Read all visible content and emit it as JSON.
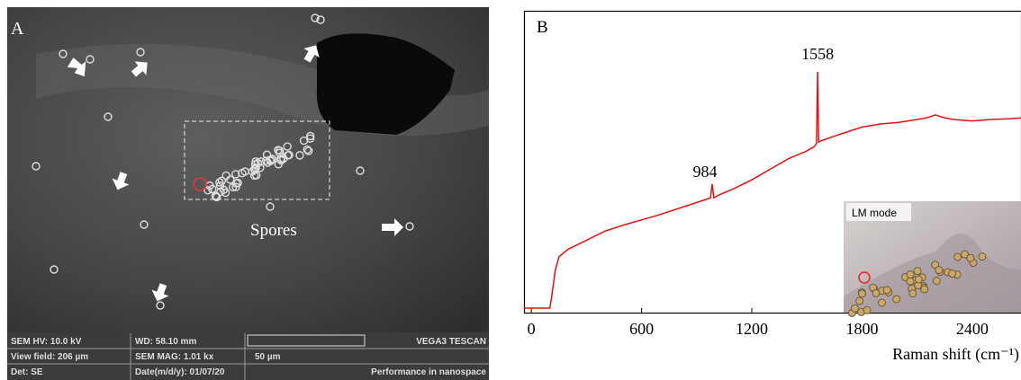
{
  "image_a": {
    "panel_label": "A",
    "spores_label": "Spores",
    "info_bar": [
      [
        "SEM HV: 10.0 kV",
        "WD: 58.10 mm",
        "VEGA3 TESCAN"
      ],
      [
        "View field: 206 µm",
        "SEM MAG: 1.01 kx",
        "50 µm"
      ],
      [
        "Det: SE",
        "Date(m/d/y): 01/07/20",
        "Performance in nanospace"
      ]
    ]
  },
  "inset": {
    "label": "LM mode"
  },
  "chart_data": {
    "type": "line",
    "panel_label": "B",
    "x_label": "Raman shift (cm⁻¹)",
    "color": "#e8100f",
    "annotations": [
      "984",
      "1558"
    ],
    "x": [
      -40,
      100,
      110,
      130,
      150,
      200,
      300,
      400,
      500,
      600,
      700,
      800,
      900,
      950,
      975,
      984,
      993,
      1020,
      1100,
      1200,
      1300,
      1400,
      1500,
      1540,
      1552,
      1558,
      1564,
      1580,
      1650,
      1700,
      1800,
      1900,
      2000,
      2100,
      2150,
      2200,
      2250,
      2300,
      2400,
      2500,
      2600,
      2665
    ],
    "values": [
      1.5,
      1.5,
      5,
      14,
      18.5,
      21,
      24,
      27,
      29,
      30.7,
      32.5,
      34.5,
      36.5,
      37.5,
      38,
      42.6,
      38,
      39,
      41,
      44,
      47.5,
      51,
      53.6,
      55,
      56,
      79.8,
      56.5,
      57,
      58.5,
      59.5,
      61.5,
      62.5,
      63,
      64,
      64.5,
      65.5,
      64.5,
      64,
      63.5,
      64,
      64.2,
      64.5
    ],
    "xlim": [
      -40,
      2665
    ],
    "ylim": [
      0,
      100
    ],
    "xticks": [
      0,
      600,
      1200,
      1800,
      2400
    ]
  }
}
